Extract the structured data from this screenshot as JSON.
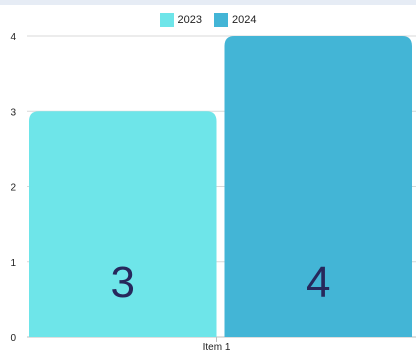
{
  "chart_data": {
    "type": "bar",
    "categories": [
      "Item 1"
    ],
    "series": [
      {
        "name": "2023",
        "values": [
          3
        ],
        "color": "#6ee5e9"
      },
      {
        "name": "2024",
        "values": [
          4
        ],
        "color": "#43b5d6"
      }
    ],
    "ylim": [
      0,
      4
    ],
    "yticks": [
      "0",
      "1",
      "2",
      "3",
      "4"
    ],
    "grid": true,
    "legend_position": "top-center",
    "data_labels": [
      "3",
      "4"
    ],
    "label_color": "#27285c"
  }
}
